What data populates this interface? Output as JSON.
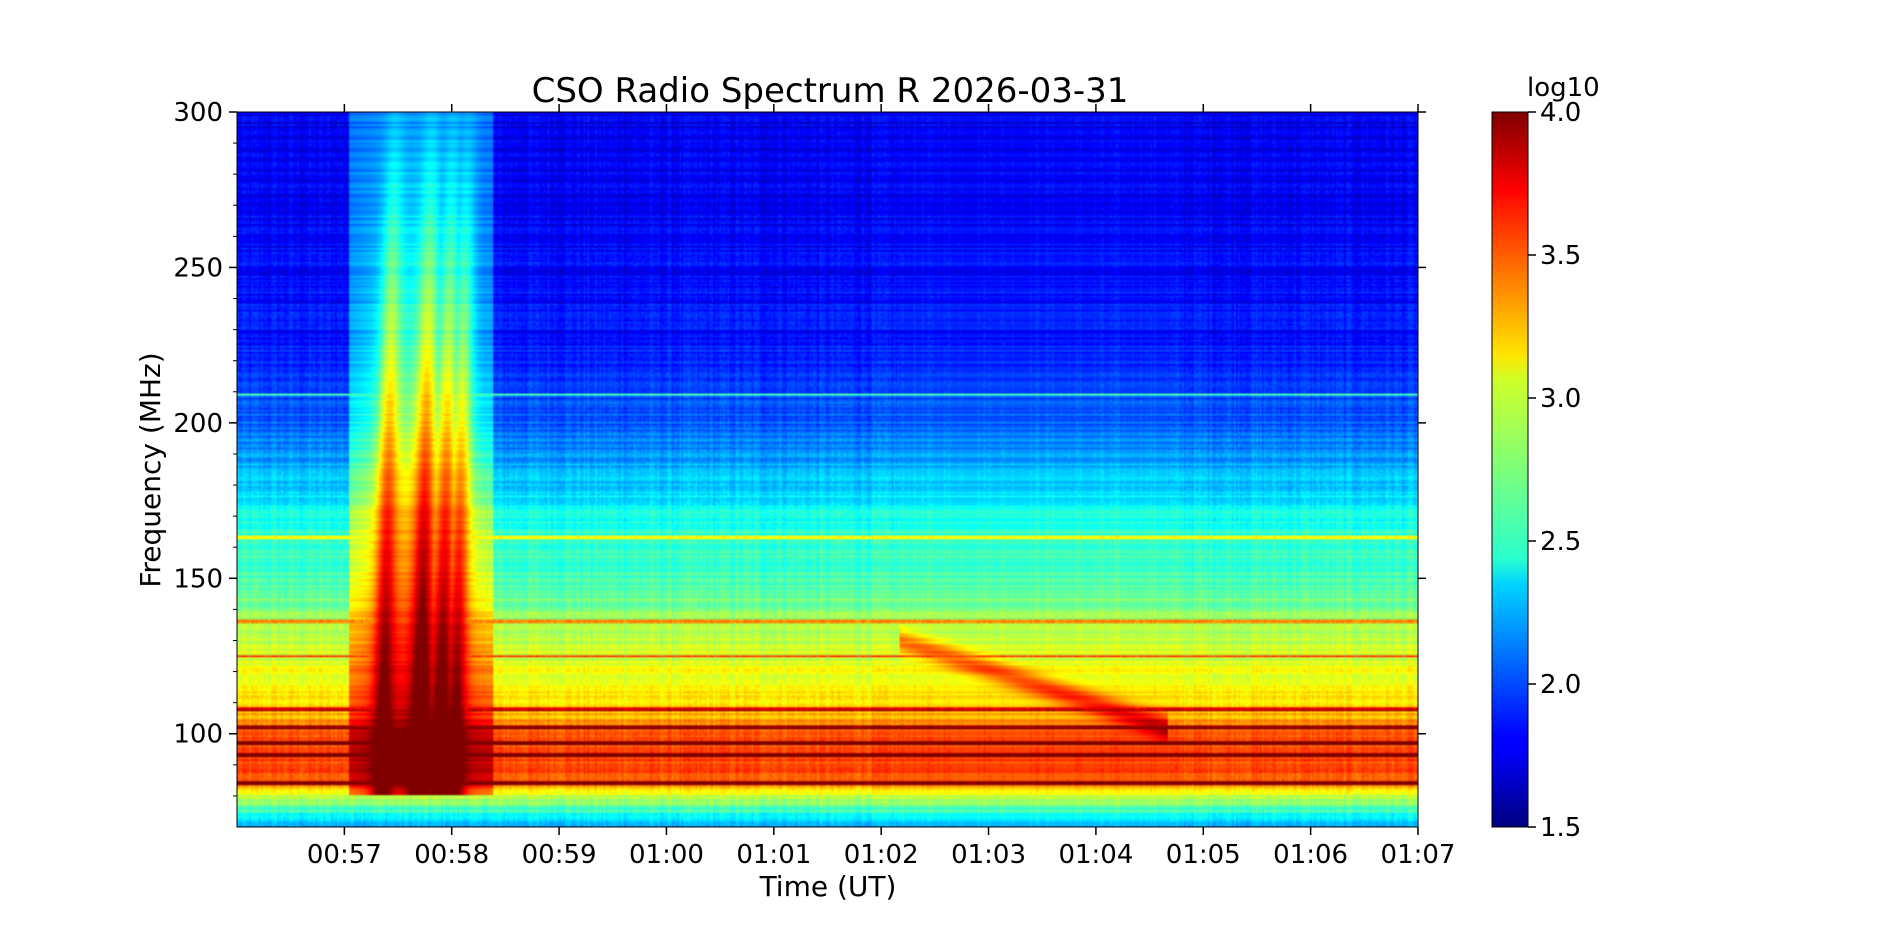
{
  "chart_data": {
    "type": "heatmap",
    "title": "CSO Radio Spectrum R 2026-03-31",
    "xlabel": "Time (UT)",
    "ylabel": "Frequency (MHz)",
    "x_range": [
      "00:56:00",
      "01:07:00"
    ],
    "x_ticks": [
      "00:57",
      "00:58",
      "00:59",
      "01:00",
      "01:01",
      "01:02",
      "01:03",
      "01:04",
      "01:05",
      "01:06",
      "01:07"
    ],
    "x_tick_minutes": [
      1,
      2,
      3,
      4,
      5,
      6,
      7,
      8,
      9,
      10,
      11
    ],
    "ylim": [
      70,
      300
    ],
    "y_ticks": [
      100,
      150,
      200,
      250,
      300
    ],
    "colorbar": {
      "label": "log10",
      "range": [
        1.5,
        4.0
      ],
      "ticks": [
        "1.5",
        "2.0",
        "2.5",
        "3.0",
        "3.5",
        "4.0"
      ],
      "colormap": "jet"
    },
    "background_log10": {
      "frequency_mhz": [
        70,
        78,
        85,
        95,
        110,
        130,
        150,
        170,
        185,
        200,
        230,
        260,
        300
      ],
      "level": [
        2.2,
        2.75,
        3.45,
        3.55,
        3.15,
        2.9,
        2.6,
        2.5,
        2.25,
        2.05,
        1.85,
        1.8,
        1.75
      ]
    },
    "events": [
      {
        "name": "type III burst",
        "time_range": [
          "00:57:15",
          "00:58:05"
        ],
        "frequency_range_mhz": [
          80,
          300
        ],
        "peak_log10": 4.0
      },
      {
        "name": "drifting emission",
        "time_range": [
          "01:02:10",
          "01:04:40"
        ],
        "frequency_range_mhz": [
          100,
          130
        ],
        "peak_log10": 3.5
      }
    ],
    "interference_lines_mhz": [
      84,
      93,
      97,
      102,
      108,
      125,
      136,
      163,
      209
    ]
  }
}
